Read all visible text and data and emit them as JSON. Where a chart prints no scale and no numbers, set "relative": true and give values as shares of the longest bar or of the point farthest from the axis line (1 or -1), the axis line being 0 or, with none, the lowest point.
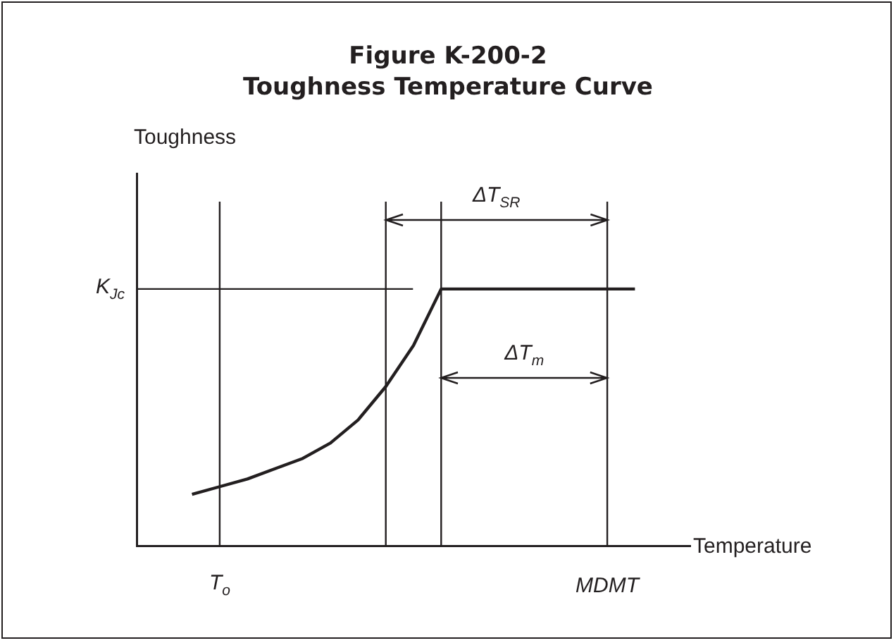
{
  "chart_data": {
    "type": "line",
    "title": "Figure K-200-2",
    "subtitle": "Toughness Temperature Curve",
    "xlabel": "Temperature",
    "relative": true,
    "categories": [
      null,
      null,
      null,
      "T$_{o}$",
      null,
      null,
      null,
      null,
      null,
      null,
      null,
      null,
      null,
      null,
      null,
      null,
      null,
      "MDMT",
      null,
      null,
      null
    ],
    "series": [
      {
        "color": "#231f20",
        "values": [
          null,
          null,
          0.2,
          0.23,
          0.26,
          0.3,
          0.34,
          0.4,
          0.49,
          0.62,
          0.78,
          1,
          1,
          1,
          1,
          1,
          1,
          1,
          1,
          null,
          null
        ]
      }
    ],
    "ref_lines": [
      {
        "axis": "y",
        "value": 1,
        "label": "K$_{Jc}$"
      }
    ],
    "annotations": [
      "Toughness",
      "ΔT$_{SR}$",
      "ΔT$_{m}$"
    ],
    "grid": "x",
    "legend": false,
    "marker": "none",
    "line_style": "solid"
  }
}
